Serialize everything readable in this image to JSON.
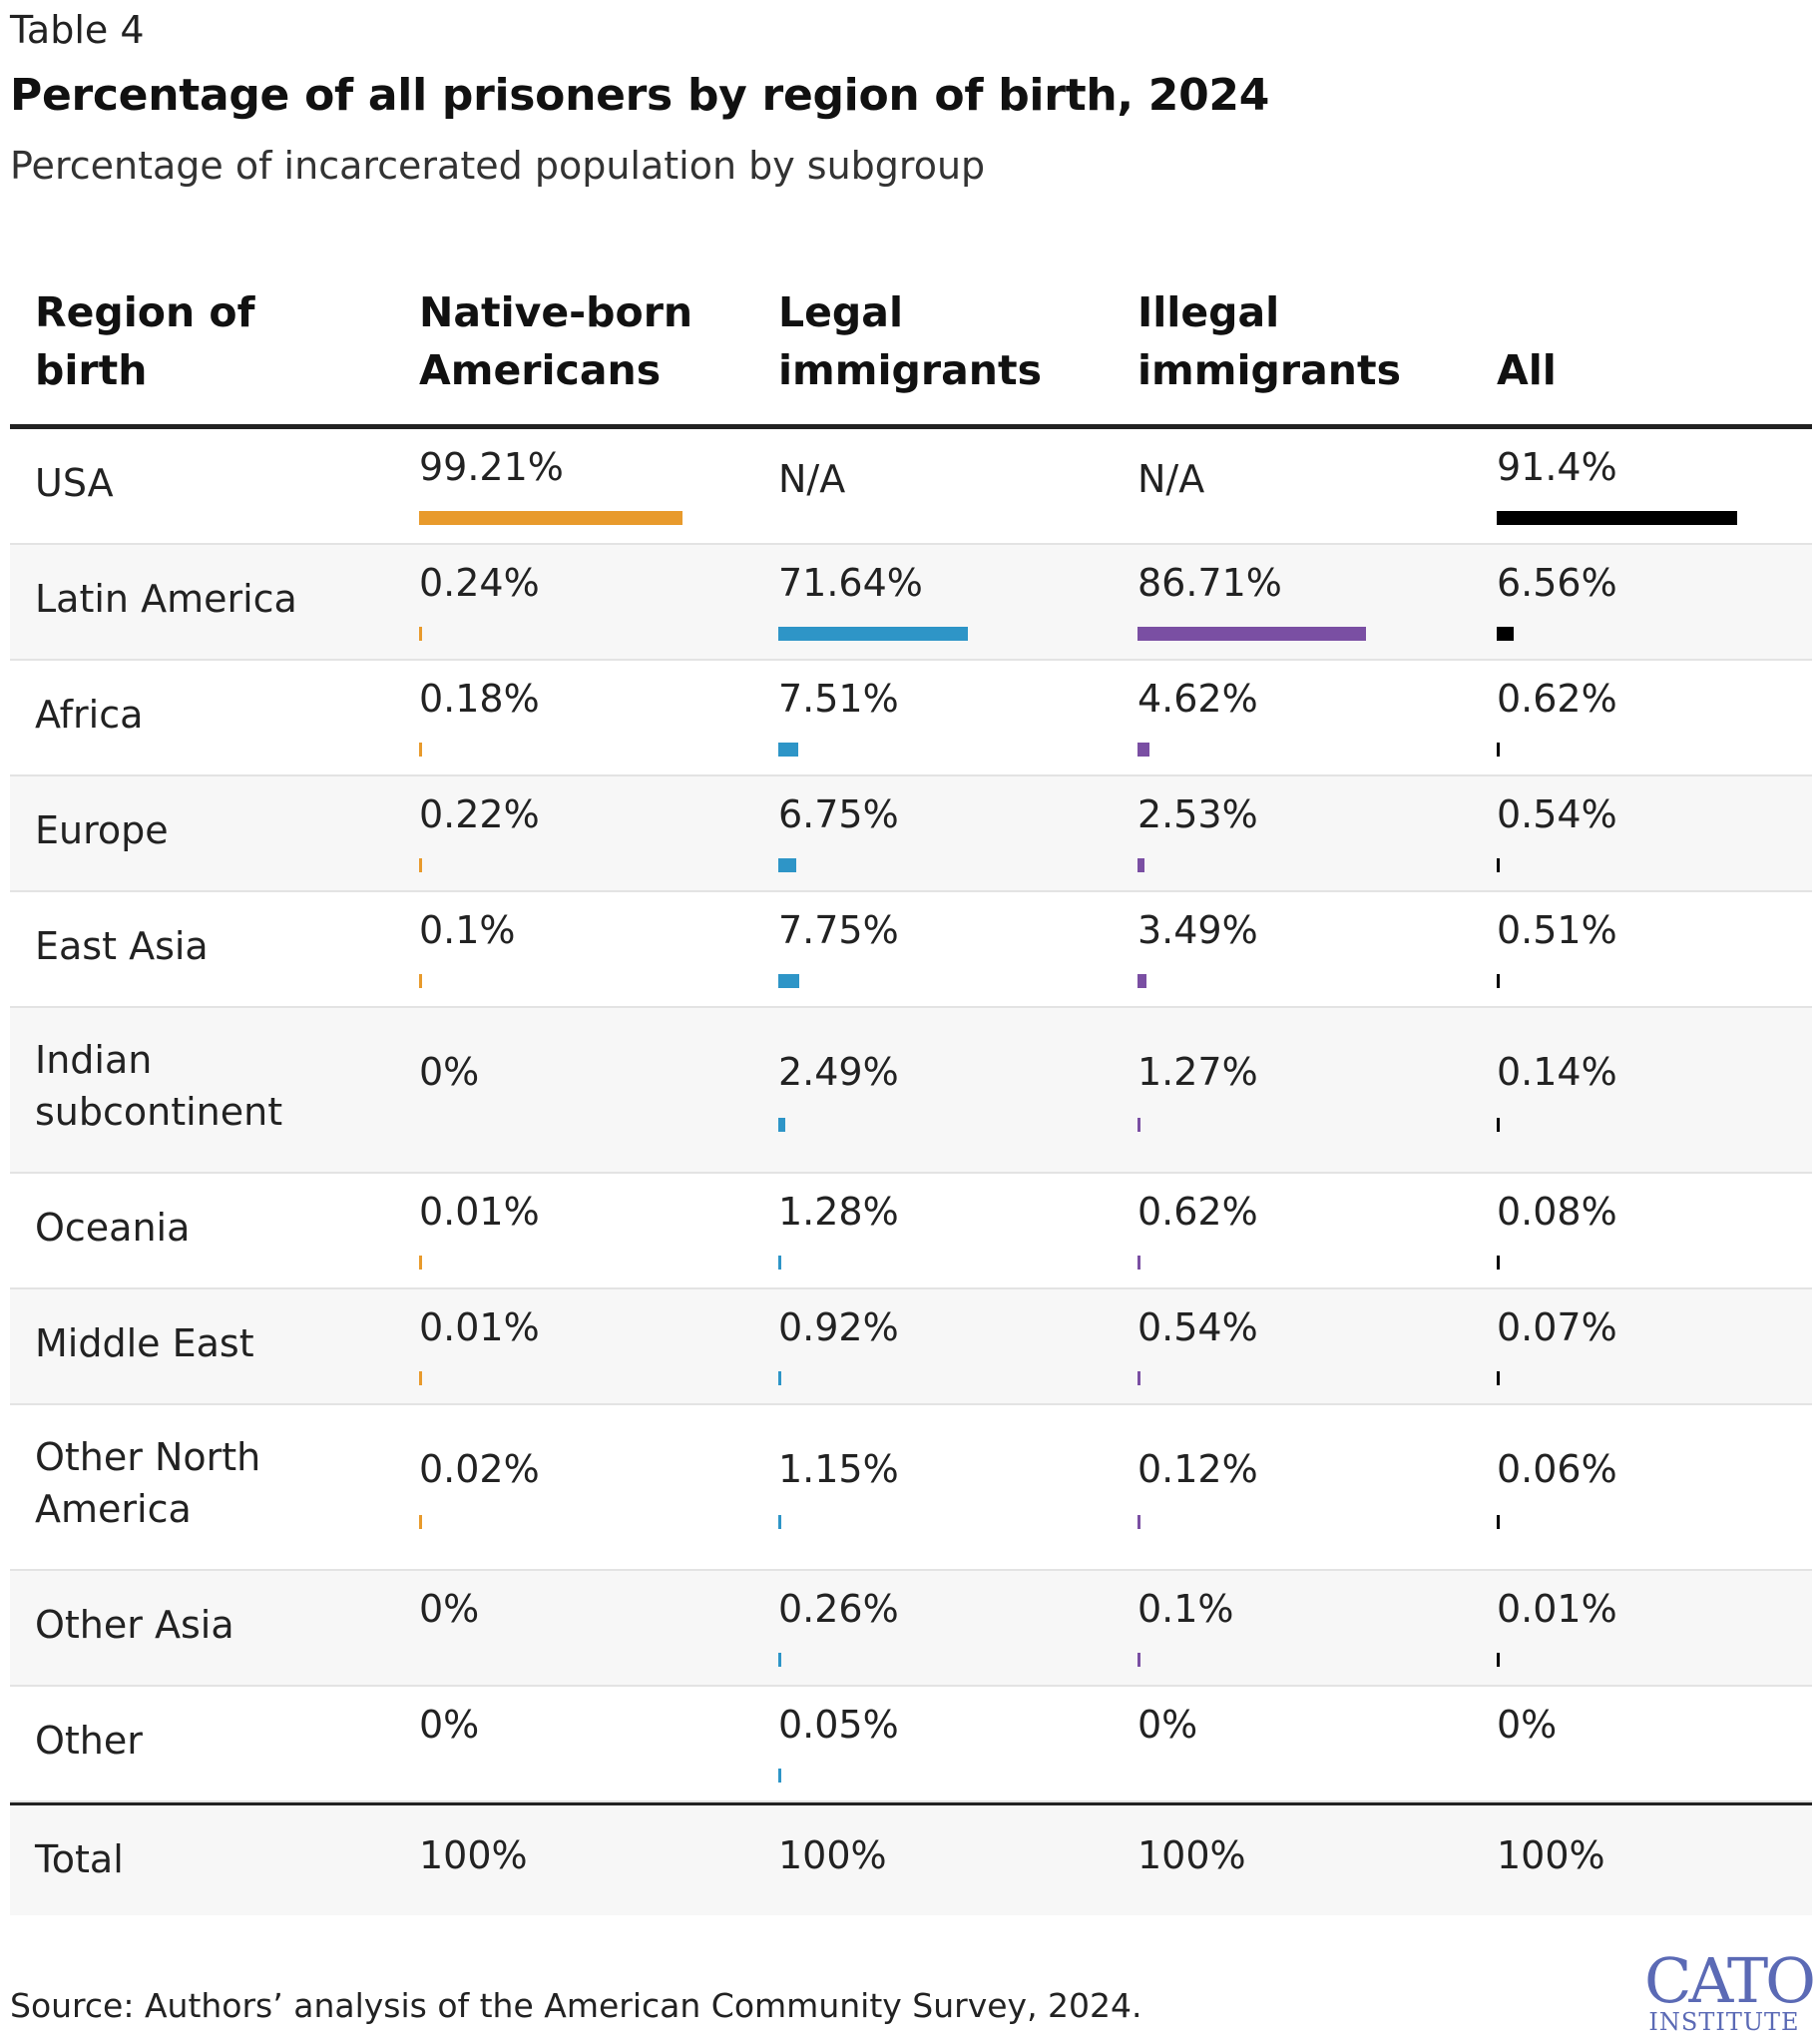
{
  "kicker": "Table 4",
  "title": "Percentage of all prisoners by region of birth, 2024",
  "subtitle": "Percentage of incarcerated population by subgroup",
  "headers": [
    "Region of\nbirth",
    "Native-born\nAmericans",
    "Legal\nimmigrants",
    "Illegal\nimmigrants",
    "All"
  ],
  "colors": {
    "native": "#e89a2c",
    "legal": "#2e95c7",
    "illegal": "#7a4fa3",
    "all": "#000000"
  },
  "rows": [
    {
      "region": "USA",
      "native": "99.21%",
      "legal": "N/A",
      "illegal": "N/A",
      "all": "91.4%"
    },
    {
      "region": "Latin America",
      "native": "0.24%",
      "legal": "71.64%",
      "illegal": "86.71%",
      "all": "6.56%"
    },
    {
      "region": "Africa",
      "native": "0.18%",
      "legal": "7.51%",
      "illegal": "4.62%",
      "all": "0.62%"
    },
    {
      "region": "Europe",
      "native": "0.22%",
      "legal": "6.75%",
      "illegal": "2.53%",
      "all": "0.54%"
    },
    {
      "region": "East Asia",
      "native": "0.1%",
      "legal": "7.75%",
      "illegal": "3.49%",
      "all": "0.51%"
    },
    {
      "region": "Indian\nsubcontinent",
      "native": "0%",
      "legal": "2.49%",
      "illegal": "1.27%",
      "all": "0.14%"
    },
    {
      "region": "Oceania",
      "native": "0.01%",
      "legal": "1.28%",
      "illegal": "0.62%",
      "all": "0.08%"
    },
    {
      "region": "Middle East",
      "native": "0.01%",
      "legal": "0.92%",
      "illegal": "0.54%",
      "all": "0.07%"
    },
    {
      "region": "Other North\nAmerica",
      "native": "0.02%",
      "legal": "1.15%",
      "illegal": "0.12%",
      "all": "0.06%"
    },
    {
      "region": "Other Asia",
      "native": "0%",
      "legal": "0.26%",
      "illegal": "0.1%",
      "all": "0.01%"
    },
    {
      "region": "Other",
      "native": "0%",
      "legal": "0.05%",
      "illegal": "0%",
      "all": "0%"
    }
  ],
  "total": {
    "region": "Total",
    "native": "100%",
    "legal": "100%",
    "illegal": "100%",
    "all": "100%"
  },
  "source": "Source: Authors’ analysis of the American Community Survey, 2024.",
  "logo": {
    "line1": "CATO",
    "line2": "INSTITUTE"
  }
}
